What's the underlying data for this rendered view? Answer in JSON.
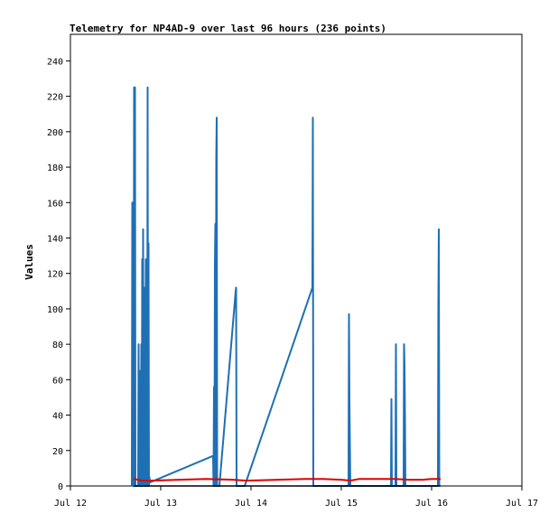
{
  "chart_data": {
    "type": "line",
    "title": "Telemetry for NP4AD-9 over last 96 hours (236 points)",
    "xlabel": "",
    "ylabel": "Values",
    "x_ticks": [
      "Jul 12",
      "Jul 13",
      "Jul 14",
      "Jul 15",
      "Jul 16",
      "Jul 17"
    ],
    "y_ticks": [
      0,
      20,
      40,
      60,
      80,
      100,
      120,
      140,
      160,
      180,
      200,
      220,
      240
    ],
    "xlim": [
      0,
      5
    ],
    "ylim": [
      0,
      255
    ],
    "grid": false,
    "legend": "none",
    "series": [
      {
        "color": "#1f6fb5",
        "points": [
          [
            0.68,
            0
          ],
          [
            0.685,
            160
          ],
          [
            0.69,
            0
          ],
          [
            0.695,
            112
          ],
          [
            0.7,
            0
          ],
          [
            0.705,
            225
          ],
          [
            0.71,
            0
          ],
          [
            0.715,
            225
          ],
          [
            0.72,
            0
          ],
          [
            0.75,
            0
          ],
          [
            0.755,
            80
          ],
          [
            0.76,
            0
          ],
          [
            0.765,
            65
          ],
          [
            0.77,
            0
          ],
          [
            0.775,
            40
          ],
          [
            0.78,
            0
          ],
          [
            0.785,
            80
          ],
          [
            0.79,
            0
          ],
          [
            0.795,
            128
          ],
          [
            0.8,
            0
          ],
          [
            0.805,
            145
          ],
          [
            0.81,
            0
          ],
          [
            0.815,
            80
          ],
          [
            0.82,
            0
          ],
          [
            0.825,
            112
          ],
          [
            0.83,
            0
          ],
          [
            0.835,
            128
          ],
          [
            0.84,
            0
          ],
          [
            0.845,
            88
          ],
          [
            0.85,
            0
          ],
          [
            0.855,
            225
          ],
          [
            0.86,
            0
          ],
          [
            0.865,
            137
          ],
          [
            0.87,
            0
          ],
          [
            0.875,
            5
          ],
          [
            0.88,
            2
          ],
          [
            1.58,
            17
          ],
          [
            1.585,
            0
          ],
          [
            1.59,
            56
          ],
          [
            1.595,
            0
          ],
          [
            1.6,
            125
          ],
          [
            1.605,
            148
          ],
          [
            1.61,
            0
          ],
          [
            1.615,
            185
          ],
          [
            1.62,
            208
          ],
          [
            1.625,
            0
          ],
          [
            1.65,
            0
          ],
          [
            1.83,
            110
          ],
          [
            1.835,
            112
          ],
          [
            1.84,
            0
          ],
          [
            1.93,
            0
          ],
          [
            2.68,
            112
          ],
          [
            2.685,
            208
          ],
          [
            2.69,
            0
          ],
          [
            3.08,
            0
          ],
          [
            3.085,
            97
          ],
          [
            3.09,
            48
          ],
          [
            3.1,
            0
          ],
          [
            3.55,
            0
          ],
          [
            3.555,
            49
          ],
          [
            3.56,
            0
          ],
          [
            3.6,
            0
          ],
          [
            3.605,
            80
          ],
          [
            3.61,
            0
          ],
          [
            3.69,
            0
          ],
          [
            3.695,
            80
          ],
          [
            3.7,
            68
          ],
          [
            3.705,
            40
          ],
          [
            3.71,
            0
          ],
          [
            3.72,
            0
          ],
          [
            4.07,
            0
          ],
          [
            4.075,
            104
          ],
          [
            4.08,
            145
          ],
          [
            4.085,
            0
          ]
        ]
      },
      {
        "color": "#dd0000",
        "points": [
          [
            0.7,
            4
          ],
          [
            0.8,
            3
          ],
          [
            0.9,
            3
          ],
          [
            1.2,
            3.5
          ],
          [
            1.5,
            4
          ],
          [
            1.8,
            3.5
          ],
          [
            1.95,
            3
          ],
          [
            2.3,
            3.5
          ],
          [
            2.6,
            4
          ],
          [
            2.8,
            4
          ],
          [
            3.0,
            3.5
          ],
          [
            3.1,
            3
          ],
          [
            3.2,
            4
          ],
          [
            3.6,
            4
          ],
          [
            3.75,
            3.5
          ],
          [
            3.9,
            3.5
          ],
          [
            4.0,
            4
          ],
          [
            4.1,
            4
          ]
        ]
      },
      {
        "color": "#000000",
        "points": [
          [
            0.7,
            0
          ],
          [
            4.1,
            0
          ]
        ]
      }
    ]
  }
}
